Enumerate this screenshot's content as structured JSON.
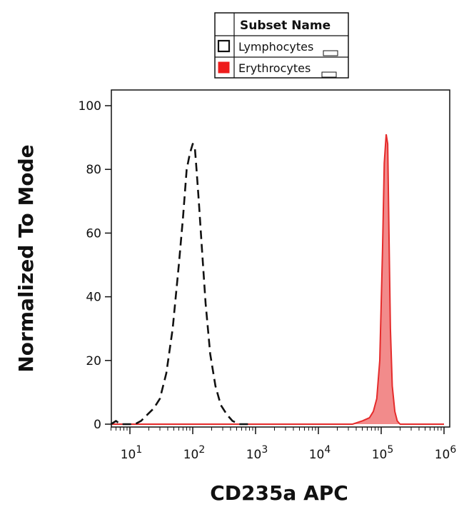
{
  "chart_data": {
    "type": "area",
    "title": "",
    "xlabel": "CD235a APC",
    "ylabel": "Normalized To Mode",
    "xscale": "log",
    "xlim": [
      5,
      1000000
    ],
    "ylim": [
      0,
      100
    ],
    "y_ticks": [
      0,
      20,
      40,
      60,
      80,
      100
    ],
    "x_ticks": [
      {
        "value": 10,
        "base": "10",
        "exp": "1"
      },
      {
        "value": 100,
        "base": "10",
        "exp": "2"
      },
      {
        "value": 1000,
        "base": "10",
        "exp": "3"
      },
      {
        "value": 10000,
        "base": "10",
        "exp": "4"
      },
      {
        "value": 100000,
        "base": "10",
        "exp": "5"
      },
      {
        "value": 1000000,
        "base": "10",
        "exp": "6"
      }
    ],
    "legend": {
      "header": "Subset Name",
      "placement": "top",
      "entries": [
        "Lymphocytes",
        "Erythrocytes"
      ]
    },
    "series": [
      {
        "name": "Lymphocytes",
        "color": "#111111",
        "style": "dashed",
        "fill": false,
        "x": [
          5,
          6,
          7,
          8,
          10,
          12,
          15,
          19,
          24,
          30,
          38,
          48,
          60,
          70,
          80,
          90,
          100,
          108,
          115,
          125,
          140,
          160,
          190,
          230,
          280,
          350,
          430,
          550,
          700,
          900
        ],
        "y": [
          0,
          1,
          0,
          0,
          0,
          0,
          1,
          3,
          5,
          8,
          16,
          30,
          50,
          65,
          80,
          85,
          88,
          87,
          80,
          70,
          55,
          38,
          22,
          12,
          6,
          3,
          1,
          0,
          0,
          0
        ]
      },
      {
        "name": "Erythrocytes",
        "color": "#e52b2b",
        "style": "solid",
        "fill": true,
        "fill_color": "#f28b8b",
        "x": [
          5,
          100,
          1000,
          10000,
          20000,
          35000,
          50000,
          65000,
          75000,
          85000,
          95000,
          105000,
          112000,
          120000,
          127000,
          133000,
          140000,
          150000,
          165000,
          180000,
          200000,
          250000,
          1000000
        ],
        "y": [
          0,
          0,
          0,
          0,
          0,
          0,
          1,
          2,
          4,
          8,
          20,
          55,
          82,
          91,
          88,
          60,
          30,
          12,
          4,
          1,
          0,
          0,
          0
        ]
      }
    ]
  }
}
